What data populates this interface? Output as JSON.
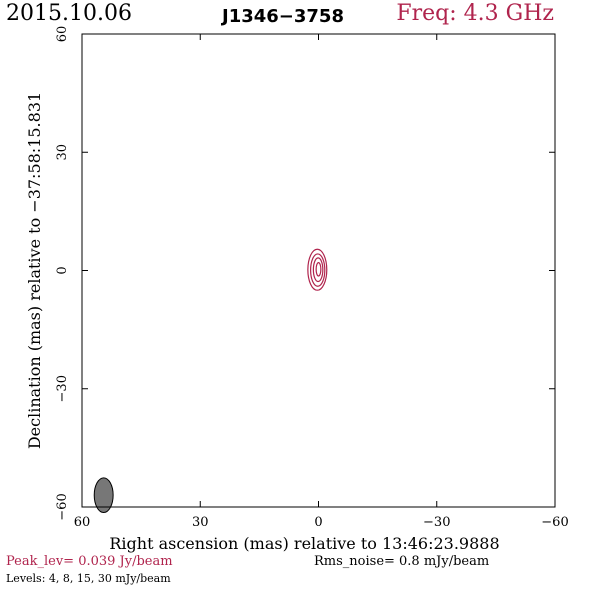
{
  "header": {
    "date": "2015.10.06",
    "source": "J1346−3758",
    "freq": "Freq: 4.3 GHz"
  },
  "footer": {
    "peak": "Peak_lev=  0.039 Jy/beam",
    "rms": "Rms_noise=  0.8 mJy/beam",
    "levels": "Levels:  4,  8,  15,  30 mJy/beam"
  },
  "colors": {
    "accent": "#b0244d",
    "contour": "#b0244d",
    "beam_fill": "#777777"
  },
  "chart_data": {
    "type": "contour",
    "xlabel": "Right ascension (mas) relative to 13:46:23.9888",
    "ylabel": "Declination (mas) relative to −37:58:15.831",
    "xlim": [
      60,
      -60
    ],
    "ylim": [
      -60,
      60
    ],
    "xticks": [
      60,
      30,
      0,
      -30,
      -60
    ],
    "xtick_labels": [
      "60",
      "30",
      "0",
      "−30",
      "−60"
    ],
    "yticks": [
      -60,
      -30,
      0,
      30,
      60
    ],
    "ytick_labels": [
      "−60",
      "−30",
      "0",
      "30",
      "60"
    ],
    "contour_levels_mJy": [
      4,
      8,
      15,
      30
    ],
    "contours": [
      {
        "level": 4,
        "cx": 0.3,
        "cy": 0.2,
        "rx": 2.4,
        "ry": 5.2
      },
      {
        "level": 8,
        "cx": 0.2,
        "cy": 0.1,
        "rx": 1.8,
        "ry": 4.1
      },
      {
        "level": 15,
        "cx": 0.1,
        "cy": 0.2,
        "rx": 1.2,
        "ry": 3.0
      },
      {
        "level": 30,
        "cx": 0.0,
        "cy": 0.3,
        "rx": 0.6,
        "ry": 1.7
      }
    ],
    "beam": {
      "cx": 54.5,
      "cy": -57,
      "major": 4.4,
      "minor": 2.4,
      "pa_deg": 0
    }
  }
}
